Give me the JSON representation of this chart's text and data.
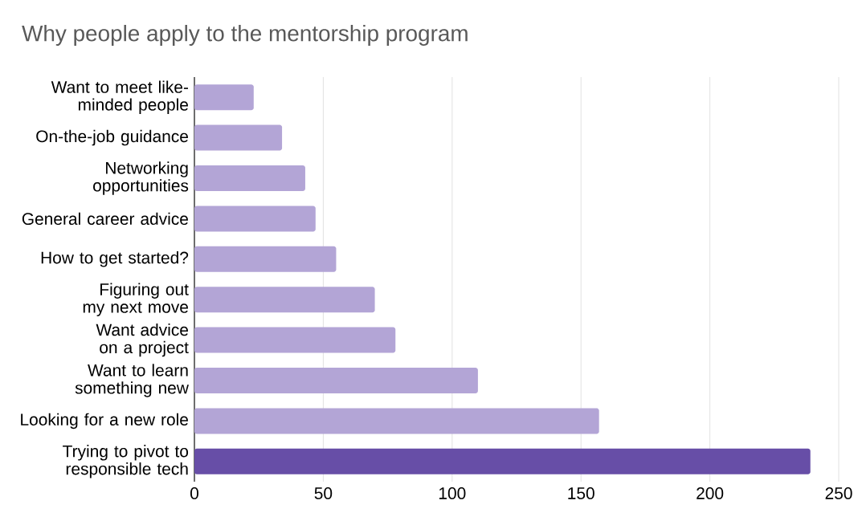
{
  "chart_data": {
    "type": "bar",
    "orientation": "horizontal",
    "title": "Why people apply to the mentorship program",
    "categories": [
      "Want to meet like-minded people",
      "On-the-job guidance",
      "Networking opportunities",
      "General career advice",
      "How to get started?",
      "Figuring out my next move",
      "Want advice on a project",
      "Want to learn something new",
      "Looking for a new role",
      "Trying to pivot to responsible tech"
    ],
    "values": [
      23,
      34,
      43,
      47,
      55,
      70,
      78,
      110,
      157,
      239
    ],
    "colors": [
      "#b3a5d6",
      "#b3a5d6",
      "#b3a5d6",
      "#b3a5d6",
      "#b3a5d6",
      "#b3a5d6",
      "#b3a5d6",
      "#b3a5d6",
      "#b3a5d6",
      "#674ea7"
    ],
    "xlim": [
      0,
      250
    ],
    "xticks": [
      0,
      50,
      100,
      150,
      200,
      250
    ],
    "grid": "x"
  }
}
